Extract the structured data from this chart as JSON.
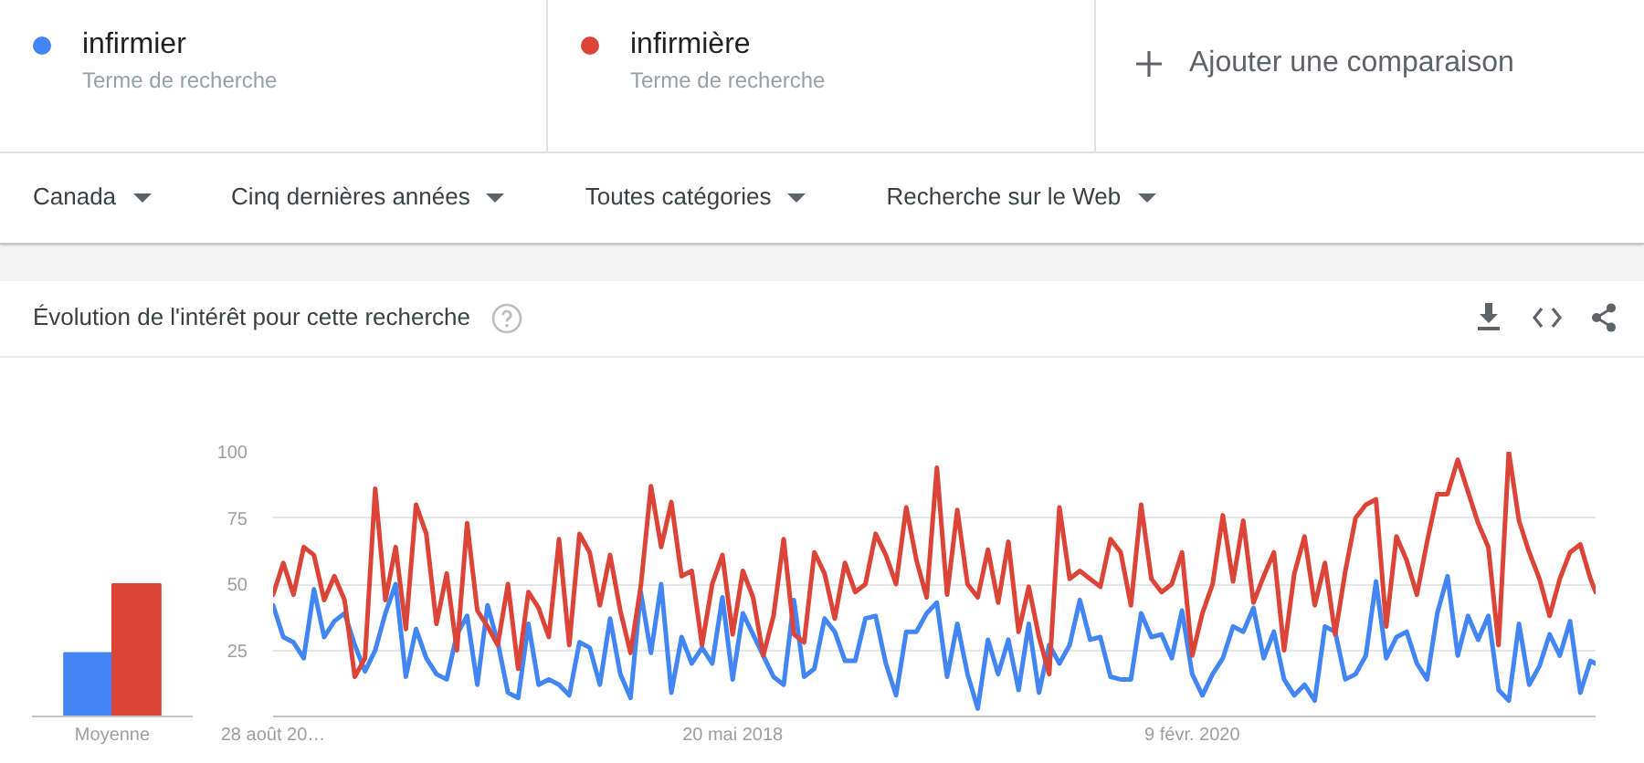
{
  "chart_data": [
    {
      "type": "bar",
      "categories": [
        "Moyenne"
      ],
      "series": [
        {
          "color": "#4285f4",
          "values": [
            24
          ]
        },
        {
          "color": "#db4437",
          "values": [
            50
          ]
        }
      ],
      "ylim": [
        0,
        100
      ],
      "tick_labels": "x"
    },
    {
      "type": "line",
      "title": "Évolution de l'intérêt pour cette recherche",
      "legend": "top",
      "grid": "y",
      "annotations": [
        "Terme de recherche",
        "Terme de recherche",
        "Ajouter une comparaison",
        "Canada",
        "Cinq dernières années",
        "Toutes catégories",
        "Recherche sur le Web"
      ],
      "xlim": [
        "2016-08-28",
        "2021-08-15"
      ],
      "xticks": [
        {
          "value": "2016-08-28",
          "label": "28 août 20…"
        },
        {
          "value": "2018-05-20",
          "label": "20 mai 2018"
        },
        {
          "value": "2020-02-09",
          "label": "9 févr. 2020"
        }
      ],
      "ylim": [
        0,
        100
      ],
      "yticks": [
        25,
        50,
        75,
        100
      ],
      "x": [
        "2016-08-28",
        "2016-09-11",
        "2016-09-25",
        "2016-10-09",
        "2016-10-23",
        "2016-11-06",
        "2016-11-20",
        "2016-12-04",
        "2016-12-18",
        "2017-01-01",
        "2017-01-15",
        "2017-01-29",
        "2017-02-12",
        "2017-02-26",
        "2017-03-12",
        "2017-03-26",
        "2017-04-09",
        "2017-04-23",
        "2017-05-07",
        "2017-05-21",
        "2017-06-04",
        "2017-06-18",
        "2017-07-02",
        "2017-07-16",
        "2017-07-30",
        "2017-08-13",
        "2017-08-27",
        "2017-09-10",
        "2017-09-24",
        "2017-10-08",
        "2017-10-22",
        "2017-11-05",
        "2017-11-19",
        "2017-12-03",
        "2017-12-17",
        "2017-12-31",
        "2018-01-14",
        "2018-01-28",
        "2018-02-11",
        "2018-02-25",
        "2018-03-11",
        "2018-03-25",
        "2018-04-08",
        "2018-04-22",
        "2018-05-06",
        "2018-05-20",
        "2018-06-03",
        "2018-06-17",
        "2018-07-01",
        "2018-07-15",
        "2018-07-29",
        "2018-08-12",
        "2018-08-26",
        "2018-09-09",
        "2018-09-23",
        "2018-10-07",
        "2018-10-21",
        "2018-11-04",
        "2018-11-18",
        "2018-12-02",
        "2018-12-16",
        "2018-12-30",
        "2019-01-13",
        "2019-01-27",
        "2019-02-10",
        "2019-02-24",
        "2019-03-10",
        "2019-03-24",
        "2019-04-07",
        "2019-04-21",
        "2019-05-05",
        "2019-05-19",
        "2019-06-02",
        "2019-06-16",
        "2019-06-30",
        "2019-07-14",
        "2019-07-28",
        "2019-08-11",
        "2019-08-25",
        "2019-09-08",
        "2019-09-22",
        "2019-10-06",
        "2019-10-20",
        "2019-11-03",
        "2019-11-17",
        "2019-12-01",
        "2019-12-15",
        "2019-12-29",
        "2020-01-12",
        "2020-01-26",
        "2020-02-09",
        "2020-02-23",
        "2020-03-08",
        "2020-03-22",
        "2020-04-05",
        "2020-04-19",
        "2020-05-03",
        "2020-05-17",
        "2020-05-31",
        "2020-06-14",
        "2020-06-28",
        "2020-07-12",
        "2020-07-26",
        "2020-08-09",
        "2020-08-23",
        "2020-09-06",
        "2020-09-20",
        "2020-10-04",
        "2020-10-18",
        "2020-11-01",
        "2020-11-15",
        "2020-11-29",
        "2020-12-13",
        "2020-12-27",
        "2021-01-10",
        "2021-01-24",
        "2021-02-07",
        "2021-02-21",
        "2021-03-07",
        "2021-03-21",
        "2021-04-04",
        "2021-04-18",
        "2021-05-02",
        "2021-05-16",
        "2021-05-30",
        "2021-06-13",
        "2021-06-27",
        "2021-07-11",
        "2021-07-25",
        "2021-08-08",
        "2021-08-15"
      ],
      "series": [
        {
          "name": "infirmier",
          "color": "#4285f4",
          "values": [
            42,
            30,
            28,
            22,
            48,
            30,
            36,
            39,
            27,
            17,
            25,
            39,
            50,
            15,
            33,
            22,
            16,
            14,
            31,
            38,
            12,
            42,
            28,
            9,
            7,
            35,
            12,
            14,
            12,
            8,
            28,
            26,
            12,
            37,
            16,
            7,
            47,
            24,
            50,
            9,
            30,
            20,
            26,
            20,
            45,
            14,
            39,
            31,
            23,
            15,
            12,
            44,
            15,
            18,
            37,
            32,
            21,
            21,
            37,
            38,
            20,
            8,
            32,
            32,
            39,
            43,
            15,
            35,
            16,
            3,
            29,
            16,
            29,
            10,
            35,
            9,
            27,
            20,
            27,
            44,
            29,
            30,
            15,
            14,
            14,
            39,
            30,
            31,
            22,
            40,
            16,
            8,
            16,
            22,
            34,
            32,
            41,
            22,
            32,
            14,
            8,
            12,
            6,
            34,
            32,
            14,
            16,
            23,
            51,
            22,
            30,
            32,
            20,
            14,
            39,
            53,
            23,
            38,
            29,
            38,
            10,
            6,
            35,
            12,
            19,
            31,
            23,
            36,
            9,
            21,
            20
          ]
        },
        {
          "name": "infirmière",
          "color": "#db4437",
          "values": [
            46,
            58,
            46,
            64,
            61,
            44,
            53,
            44,
            15,
            22,
            86,
            44,
            64,
            33,
            80,
            69,
            35,
            54,
            25,
            73,
            40,
            34,
            27,
            50,
            18,
            47,
            41,
            30,
            67,
            27,
            69,
            62,
            42,
            61,
            40,
            24,
            49,
            87,
            64,
            81,
            53,
            55,
            27,
            50,
            61,
            31,
            55,
            45,
            23,
            38,
            67,
            31,
            28,
            62,
            54,
            37,
            58,
            47,
            50,
            69,
            61,
            50,
            79,
            59,
            45,
            94,
            46,
            78,
            50,
            45,
            63,
            43,
            66,
            32,
            49,
            30,
            16,
            79,
            52,
            55,
            52,
            49,
            67,
            62,
            42,
            80,
            52,
            47,
            50,
            62,
            23,
            39,
            50,
            76,
            51,
            74,
            43,
            53,
            62,
            25,
            54,
            68,
            42,
            58,
            31,
            55,
            75,
            80,
            82,
            34,
            68,
            59,
            46,
            66,
            84,
            84,
            97,
            85,
            73,
            64,
            27,
            100,
            74,
            62,
            52,
            38,
            52,
            62,
            65,
            52,
            47
          ]
        }
      ]
    }
  ]
}
